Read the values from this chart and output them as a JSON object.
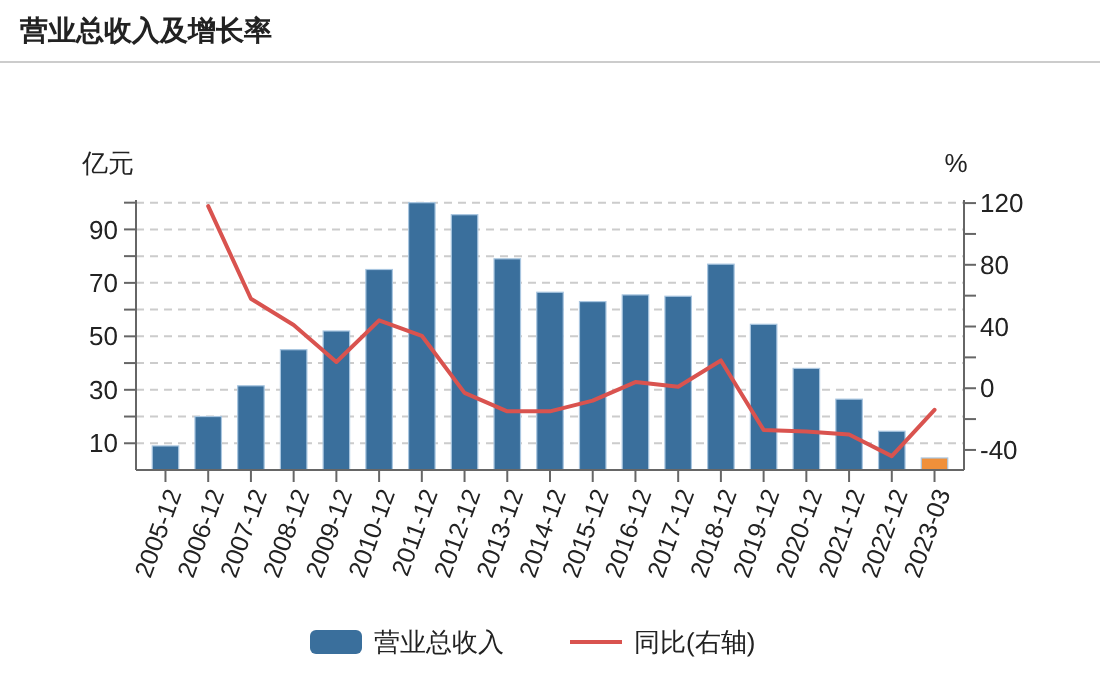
{
  "chart_data": {
    "type": "bar",
    "title": "营业总收入及增长率",
    "ylabel": "亿元",
    "y2label": "%",
    "categories": [
      "2005-12",
      "2006-12",
      "2007-12",
      "2008-12",
      "2009-12",
      "2010-12",
      "2011-12",
      "2012-12",
      "2013-12",
      "2014-12",
      "2015-12",
      "2016-12",
      "2017-12",
      "2018-12",
      "2019-12",
      "2020-12",
      "2021-12",
      "2022-12",
      "2023-03"
    ],
    "series": [
      {
        "name": "营业总收入",
        "color": "#3a6f9c",
        "colors": [
          "#3a6f9c",
          "#3a6f9c",
          "#3a6f9c",
          "#3a6f9c",
          "#3a6f9c",
          "#3a6f9c",
          "#3a6f9c",
          "#3a6f9c",
          "#3a6f9c",
          "#3a6f9c",
          "#3a6f9c",
          "#3a6f9c",
          "#3a6f9c",
          "#3a6f9c",
          "#3a6f9c",
          "#3a6f9c",
          "#3a6f9c",
          "#3a6f9c",
          "#f0903a"
        ],
        "values": [
          9,
          20,
          31.5,
          45,
          52,
          75,
          100,
          95.5,
          79,
          66.5,
          63,
          65.5,
          65,
          77,
          54.5,
          38,
          26.5,
          14.5,
          4.5
        ]
      },
      {
        "name": "同比(右轴)",
        "type": "line",
        "axis": "y2",
        "color": "#d9534f",
        "values": [
          null,
          118,
          58,
          41,
          17,
          44,
          34,
          -3,
          -15,
          -15,
          -8,
          4,
          1,
          18,
          -27,
          -28,
          -30,
          -44,
          -14
        ]
      }
    ],
    "ylim": [
      0,
      101
    ],
    "yticks": [
      {
        "value": 10,
        "label": "10"
      },
      {
        "value": 20,
        "label": null
      },
      {
        "value": 30,
        "label": "30"
      },
      {
        "value": 40,
        "label": null
      },
      {
        "value": 50,
        "label": "50"
      },
      {
        "value": 60,
        "label": null
      },
      {
        "value": 70,
        "label": "70"
      },
      {
        "value": 80,
        "label": null
      },
      {
        "value": 90,
        "label": "90"
      },
      {
        "value": 100,
        "label": null
      }
    ],
    "y2lim": [
      -53,
      122
    ],
    "y2ticks": [
      {
        "value": -40,
        "label": "-40"
      },
      {
        "value": -20,
        "label": null
      },
      {
        "value": 0,
        "label": "0"
      },
      {
        "value": 20,
        "label": null
      },
      {
        "value": 40,
        "label": "40"
      },
      {
        "value": 60,
        "label": null
      },
      {
        "value": 80,
        "label": "80"
      },
      {
        "value": 100,
        "label": null
      },
      {
        "value": 120,
        "label": "120"
      }
    ],
    "grid": "y",
    "legend": "bottom"
  }
}
